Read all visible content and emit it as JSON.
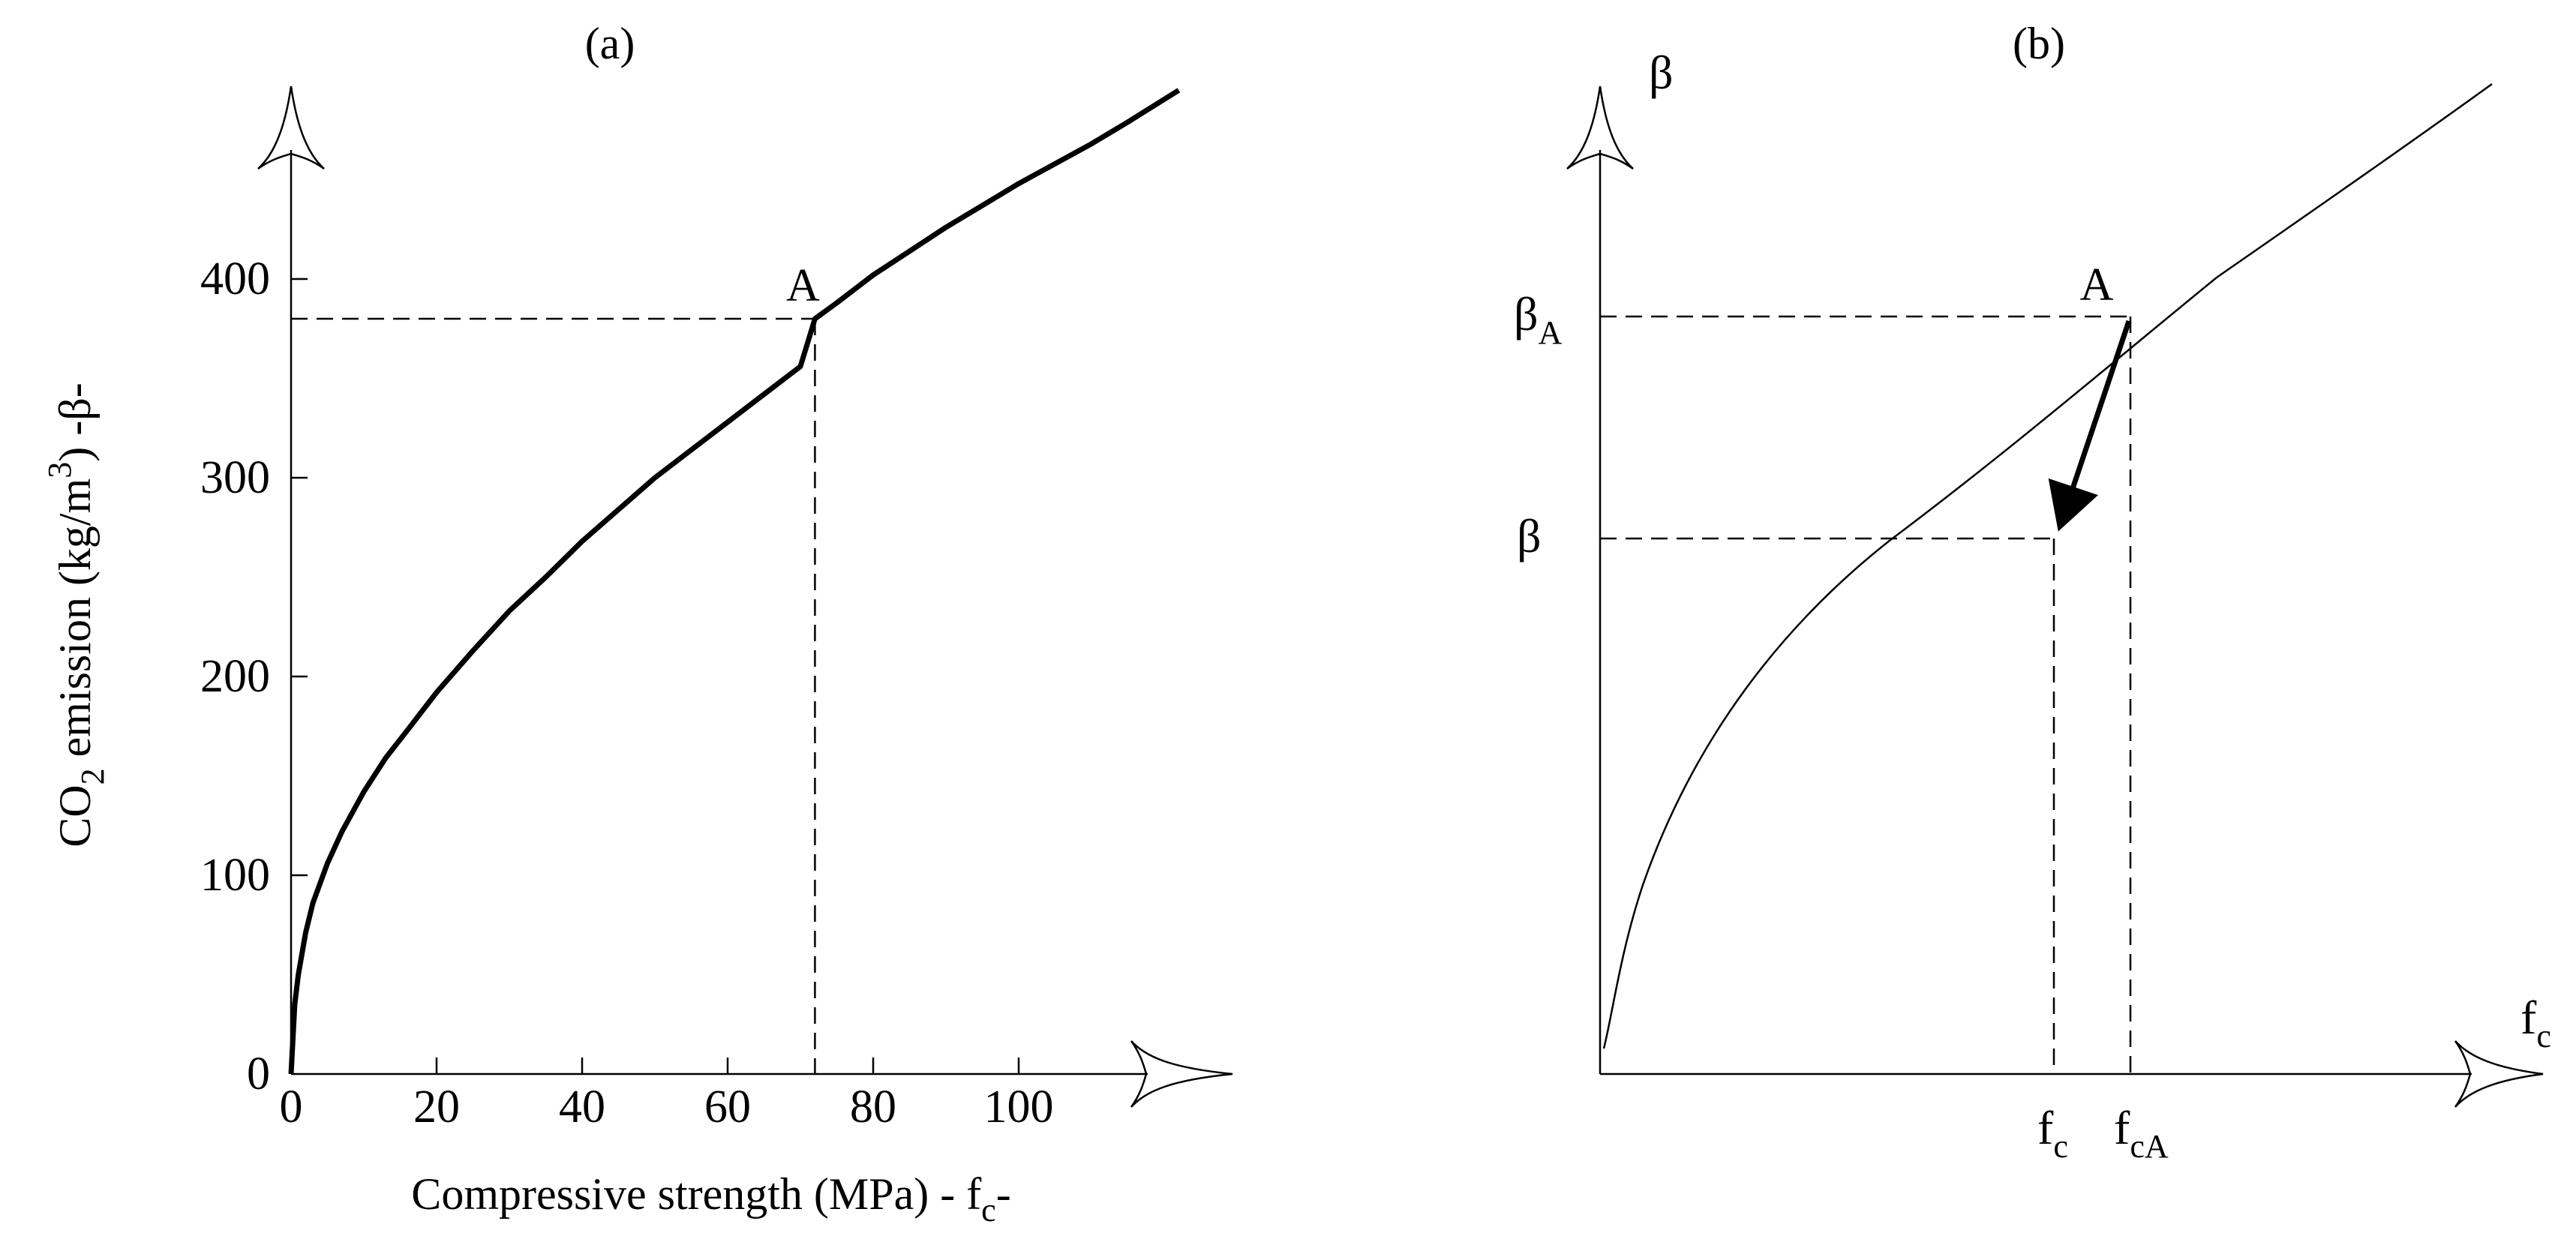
{
  "chart_data": [
    {
      "type": "line",
      "title": "(a)",
      "xlabel": {
        "main": "Compressive strength (MPa) - f",
        "sub": "c",
        "tail": "-"
      },
      "ylabel": {
        "pre": "CO",
        "sub": "2",
        "mid": "  emission (kg/m",
        "sup": "3",
        "tail": ")  -β-"
      },
      "xlim": [
        0,
        120
      ],
      "ylim": [
        0,
        490
      ],
      "xticks": [
        0,
        20,
        40,
        60,
        80,
        100
      ],
      "yticks": [
        0,
        100,
        200,
        300,
        400
      ],
      "xticklabels": [
        "0",
        "20",
        "40",
        "60",
        "80",
        "100"
      ],
      "yticklabels": [
        "0",
        "100",
        "200",
        "300",
        "400"
      ],
      "grid": false,
      "series": [
        {
          "x": [
            0,
            0.5,
            1,
            2,
            3,
            5,
            7,
            10,
            13,
            16,
            20,
            25,
            30,
            35,
            40,
            45,
            50,
            55,
            60,
            65,
            70,
            72,
            75,
            80,
            85,
            90,
            95,
            100,
            105,
            110,
            115,
            122
          ],
          "y": [
            0,
            35,
            50,
            71,
            86,
            106,
            122,
            142,
            159,
            173,
            192,
            213,
            233,
            250,
            268,
            284,
            300,
            314,
            328,
            342,
            356,
            380,
            388,
            402,
            414,
            426,
            437,
            448,
            458,
            468,
            479,
            495
          ]
        }
      ],
      "point": {
        "label": "A",
        "x": 72,
        "y": 380
      }
    },
    {
      "type": "line",
      "title": "(b)",
      "xlabel": {
        "main": "f",
        "sub": "c"
      },
      "ylabel": {
        "main": "β"
      },
      "grid": false,
      "points": {
        "A": {
          "label": "A",
          "y_label": "β",
          "y_sub": "A",
          "x_label": "f",
          "x_sub": "cA"
        },
        "B": {
          "y_label": "β",
          "x_label": "f",
          "x_sub": "c"
        }
      }
    }
  ]
}
